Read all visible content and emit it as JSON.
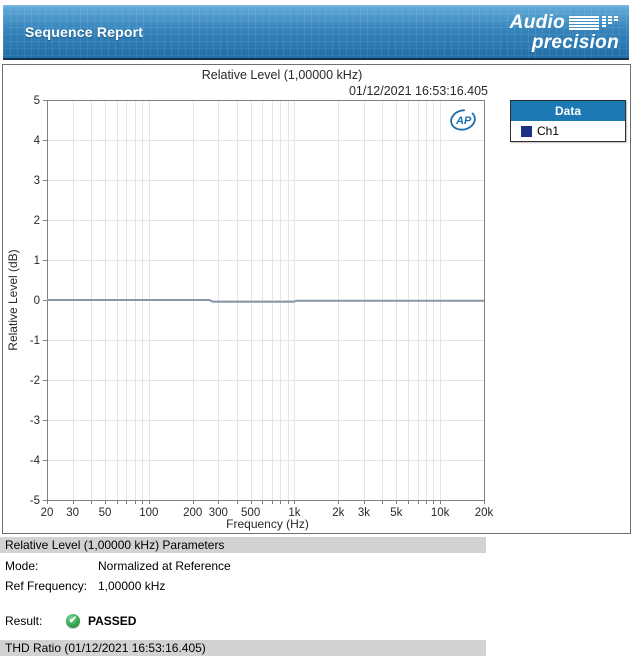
{
  "header": {
    "title": "Sequence Report",
    "logo_word1": "Audio",
    "logo_word2": "precision"
  },
  "chart": {
    "title": "Relative Level (1,00000 kHz)",
    "timestamp": "01/12/2021 16:53:16.405",
    "ap_monogram": "AP",
    "legend": {
      "header": "Data",
      "items": [
        {
          "label": "Ch1",
          "color": "#1b3185"
        }
      ]
    }
  },
  "chart_data": {
    "type": "line",
    "title": "Relative Level (1,00000 kHz)",
    "xlabel": "Frequency (Hz)",
    "ylabel": "Relative Level (dB)",
    "x_scale": "log",
    "xlim": [
      20,
      20000
    ],
    "ylim": [
      -5,
      5
    ],
    "grid": true,
    "legend_position": "right",
    "y_ticks": [
      5,
      4,
      3,
      2,
      1,
      0,
      -1,
      -2,
      -3,
      -4,
      -5
    ],
    "x_ticks": [
      {
        "value": 20,
        "label": "20"
      },
      {
        "value": 30,
        "label": "30"
      },
      {
        "value": 50,
        "label": "50"
      },
      {
        "value": 100,
        "label": "100"
      },
      {
        "value": 200,
        "label": "200"
      },
      {
        "value": 300,
        "label": "300"
      },
      {
        "value": 500,
        "label": "500"
      },
      {
        "value": 1000,
        "label": "1k"
      },
      {
        "value": 2000,
        "label": "2k"
      },
      {
        "value": 3000,
        "label": "3k"
      },
      {
        "value": 5000,
        "label": "5k"
      },
      {
        "value": 10000,
        "label": "10k"
      },
      {
        "value": 20000,
        "label": "20k"
      }
    ],
    "x_gridlines": [
      20,
      30,
      40,
      50,
      60,
      70,
      80,
      90,
      100,
      200,
      300,
      400,
      500,
      600,
      700,
      800,
      900,
      1000,
      2000,
      3000,
      4000,
      5000,
      6000,
      7000,
      8000,
      9000,
      10000,
      20000
    ],
    "series": [
      {
        "name": "Ch1",
        "color": "#8796a9",
        "points": [
          [
            20,
            0
          ],
          [
            260,
            0
          ],
          [
            275,
            -0.045
          ],
          [
            980,
            -0.045
          ],
          [
            1040,
            -0.02
          ],
          [
            20000,
            -0.02
          ]
        ]
      }
    ]
  },
  "params": {
    "header": "Relative Level (1,00000 kHz) Parameters",
    "rows": [
      {
        "label": "Mode:",
        "value": "Normalized at Reference"
      },
      {
        "label": "Ref Frequency:",
        "value": "1,00000 kHz"
      }
    ],
    "result_label": "Result:",
    "result_status": "PASSED",
    "check_glyph": "✔"
  },
  "footer": {
    "next_section_header": "THD Ratio (01/12/2021 16:53:16.405)"
  },
  "colors": {
    "banner_blue": "#3584bb",
    "legend_header_blue": "#1d79b4",
    "channel_swatch_navy": "#1b3185",
    "trace_slate_blue": "#8796a9",
    "grid_gray": "#e4e4e4",
    "axis_gray": "#7f7f7f",
    "section_bar_gray": "#d2d2d2",
    "passed_green": "#35a653",
    "ap_logo_blue": "#1c6fad"
  }
}
